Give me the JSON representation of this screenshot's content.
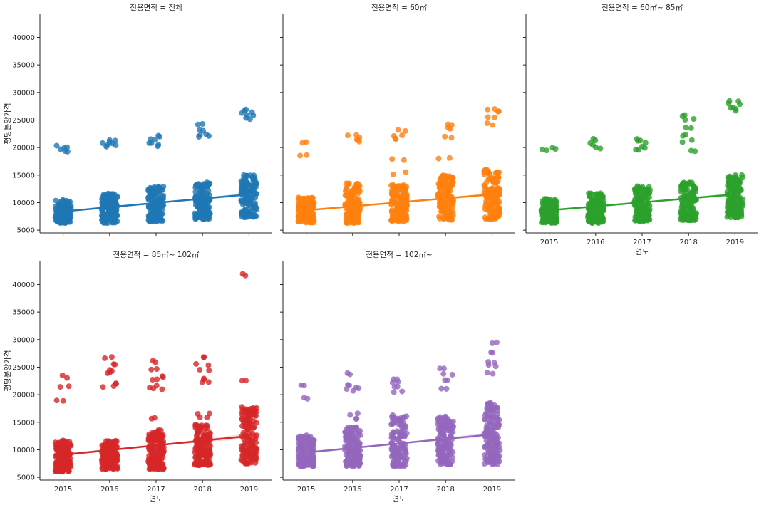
{
  "chart_data": {
    "type": "scatter",
    "description_kind": "faceted strip plot with linear regression fit per panel",
    "shared_axes": {
      "xlabel": "연도",
      "ylabel": "평당분양가격",
      "x_categories": [
        "2015",
        "2016",
        "2017",
        "2018",
        "2019"
      ],
      "ylim": [
        4500,
        44200
      ],
      "yticks": [
        "5000",
        "10000",
        "15000",
        "20000",
        "25000",
        "30000",
        "35000",
        "40000"
      ],
      "grid": false,
      "legend": "none"
    },
    "panels": [
      {
        "title": "전용면적 = 전체",
        "color": "#1f77b4",
        "regression": {
          "x": [
            2015,
            2019
          ],
          "y": [
            8400,
            11500
          ],
          "ci_halfwidth": 300
        },
        "clusters": [
          {
            "x": "2015",
            "dense_range": [
              6300,
              10500
            ],
            "outliers": [
              19300,
              19900,
              20100
            ]
          },
          {
            "x": "2016",
            "dense_range": [
              6300,
              11700
            ],
            "outliers": [
              20300,
              20600,
              20900,
              21100
            ]
          },
          {
            "x": "2017",
            "dense_range": [
              6600,
              13000
            ],
            "outliers": [
              20300,
              21000,
              21500,
              22100
            ]
          },
          {
            "x": "2018",
            "dense_range": [
              7000,
              13700
            ],
            "outliers": [
              22000,
              22500,
              23000,
              24300
            ]
          },
          {
            "x": "2019",
            "dense_range": [
              7300,
              15000
            ],
            "outliers": [
              25200,
              25700,
              26500,
              26800
            ]
          }
        ]
      },
      {
        "title": "전용면적 =  60㎡",
        "color": "#ff7f0e",
        "regression": {
          "x": [
            2015,
            2019
          ],
          "y": [
            8600,
            11500
          ],
          "ci_halfwidth": 300
        },
        "clusters": [
          {
            "x": "2015",
            "dense_range": [
              6300,
              11000
            ],
            "outliers": [
              18700,
              20800
            ]
          },
          {
            "x": "2016",
            "dense_range": [
              6300,
              13600
            ],
            "outliers": [
              21300,
              21700,
              22100
            ]
          },
          {
            "x": "2017",
            "dense_range": [
              6600,
              13300
            ],
            "outliers": [
              15300,
              17800,
              21400,
              22300,
              23000
            ]
          },
          {
            "x": "2018",
            "dense_range": [
              6800,
              15000
            ],
            "outliers": [
              18000,
              22000,
              23500,
              24300
            ]
          },
          {
            "x": "2019",
            "dense_range": [
              7000,
              16000
            ],
            "outliers": [
              24300,
              25700,
              26600,
              27100
            ]
          }
        ]
      },
      {
        "title": "전용면적 =  60㎡~ 85㎡",
        "color": "#2ca02c",
        "regression": {
          "x": [
            2015,
            2019
          ],
          "y": [
            8600,
            11500
          ],
          "ci_halfwidth": 300
        },
        "clusters": [
          {
            "x": "2015",
            "dense_range": [
              6300,
              10800
            ],
            "outliers": [
              19600,
              19800
            ]
          },
          {
            "x": "2016",
            "dense_range": [
              6300,
              11700
            ],
            "outliers": [
              19900,
              20600,
              21500
            ]
          },
          {
            "x": "2017",
            "dense_range": [
              6600,
              13000
            ],
            "outliers": [
              19400,
              20100,
              21000,
              21400
            ]
          },
          {
            "x": "2018",
            "dense_range": [
              6800,
              13700
            ],
            "outliers": [
              19400,
              21100,
              22300,
              23600,
              25100,
              25900
            ]
          },
          {
            "x": "2019",
            "dense_range": [
              7300,
              15000
            ],
            "outliers": [
              26800,
              27300,
              27800,
              28300
            ]
          }
        ]
      },
      {
        "title": "전용면적 =  85㎡~ 102㎡",
        "color": "#d62728",
        "regression": {
          "x": [
            2015,
            2019
          ],
          "y": [
            9100,
            12500
          ],
          "ci_halfwidth": 450
        },
        "clusters": [
          {
            "x": "2015",
            "dense_range": [
              6000,
              11700
            ],
            "outliers": [
              18800,
              21400,
              23300
            ]
          },
          {
            "x": "2016",
            "dense_range": [
              6500,
              11700
            ],
            "outliers": [
              21400,
              22200,
              23900,
              24400,
              25500,
              26700
            ]
          },
          {
            "x": "2017",
            "dense_range": [
              6500,
              13700
            ],
            "outliers": [
              15900,
              21100,
              21400,
              22900,
              23400,
              24500,
              26000
            ]
          },
          {
            "x": "2018",
            "dense_range": [
              7200,
              14600
            ],
            "outliers": [
              16000,
              16600,
              22300,
              22800,
              24500,
              25500,
              26700
            ]
          },
          {
            "x": "2019",
            "dense_range": [
              7500,
              17900
            ],
            "outliers": [
              22600,
              41900
            ]
          }
        ]
      },
      {
        "title": "전용면적 =  102㎡~",
        "color": "#9467bd",
        "regression": {
          "x": [
            2015,
            2019
          ],
          "y": [
            9500,
            12800
          ],
          "ci_halfwidth": 400
        },
        "clusters": [
          {
            "x": "2015",
            "dense_range": [
              7000,
              12700
            ],
            "outliers": [
              19300,
              21500
            ]
          },
          {
            "x": "2016",
            "dense_range": [
              7000,
              14200
            ],
            "outliers": [
              15800,
              16500,
              20800,
              21300,
              21900,
              23900
            ]
          },
          {
            "x": "2017",
            "dense_range": [
              7000,
              16600
            ],
            "outliers": [
              20600,
              21600,
              22100,
              22900
            ]
          },
          {
            "x": "2018",
            "dense_range": [
              7300,
              16100
            ],
            "outliers": [
              21300,
              22500,
              23800,
              24900
            ]
          },
          {
            "x": "2019",
            "dense_range": [
              7400,
              18700
            ],
            "outliers": [
              24000,
              25300,
              25800,
              27700,
              29400
            ]
          }
        ]
      }
    ]
  }
}
